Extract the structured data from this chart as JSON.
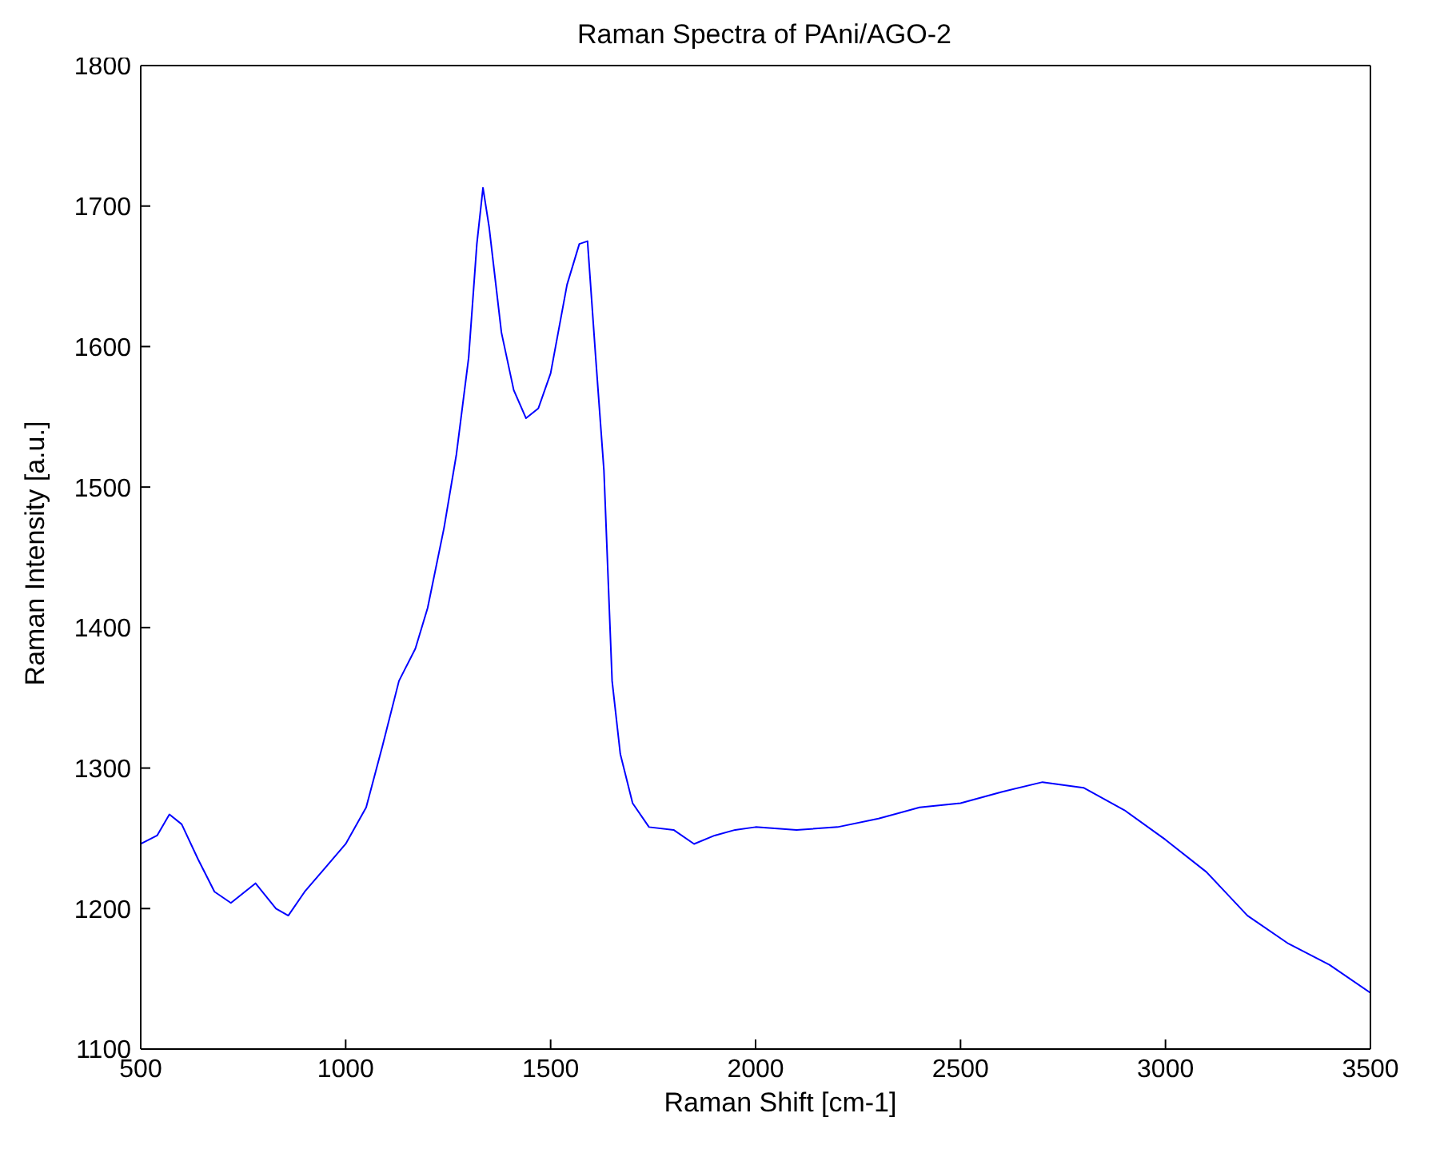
{
  "chart_data": {
    "type": "line",
    "title": "Raman Spectra of PAni/AGO-2",
    "xlabel": "Raman Shift [cm-1]",
    "ylabel": "Raman Intensity [a.u.]",
    "x": [
      500,
      540,
      570,
      600,
      640,
      680,
      720,
      780,
      830,
      860,
      900,
      950,
      1000,
      1050,
      1090,
      1130,
      1170,
      1200,
      1240,
      1270,
      1300,
      1320,
      1335,
      1350,
      1380,
      1410,
      1440,
      1470,
      1500,
      1540,
      1570,
      1590,
      1610,
      1630,
      1650,
      1670,
      1700,
      1740,
      1800,
      1850,
      1900,
      1950,
      2000,
      2100,
      2200,
      2300,
      2400,
      2500,
      2600,
      2700,
      2800,
      2900,
      3000,
      3100,
      3200,
      3300,
      3400,
      3500
    ],
    "series": [
      {
        "color": "#0000ff",
        "values": [
          1246,
          1252,
          1267,
          1260,
          1235,
          1212,
          1204,
          1218,
          1200,
          1195,
          1212,
          1229,
          1246,
          1272,
          1316,
          1362,
          1385,
          1414,
          1471,
          1523,
          1592,
          1673,
          1713,
          1685,
          1610,
          1569,
          1549,
          1556,
          1581,
          1644,
          1673,
          1675,
          1592,
          1512,
          1362,
          1310,
          1275,
          1258,
          1256,
          1246,
          1252,
          1256,
          1258,
          1256,
          1258,
          1264,
          1272,
          1275,
          1283,
          1290,
          1286,
          1270,
          1249,
          1226,
          1195,
          1175,
          1160,
          1140
        ]
      }
    ],
    "xlim": [
      500,
      3500
    ],
    "xticks": [
      500,
      1000,
      1500,
      2000,
      2500,
      3000,
      3500
    ],
    "ylim": [
      1100,
      1800
    ],
    "yticks": [
      1100,
      1200,
      1300,
      1400,
      1500,
      1600,
      1700,
      1800
    ],
    "grid": false,
    "legend": false,
    "marker": "none",
    "line_style": "solid"
  }
}
